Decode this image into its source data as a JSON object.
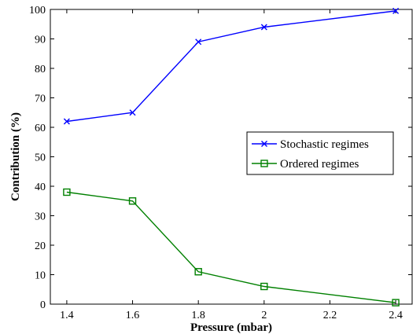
{
  "chart_data": {
    "type": "line",
    "xlabel": "Pressure (mbar)",
    "ylabel": "Contribution (%)",
    "x": [
      1.4,
      1.6,
      1.8,
      2.0,
      2.4
    ],
    "xlim": [
      1.35,
      2.45
    ],
    "ylim": [
      0,
      100
    ],
    "xticks": [
      "1.4",
      "1.6",
      "1.8",
      "2",
      "2.2",
      "2.4"
    ],
    "yticks": [
      "0",
      "10",
      "20",
      "30",
      "40",
      "50",
      "60",
      "70",
      "80",
      "90",
      "100"
    ],
    "grid": false,
    "legend_position": "right",
    "series": [
      {
        "name": "Stochastic regimes",
        "values": [
          62,
          65,
          89,
          94,
          99.5
        ],
        "color": "#0000ff",
        "marker": "x"
      },
      {
        "name": "Ordered regimes",
        "values": [
          38,
          35,
          11,
          6,
          0.5
        ],
        "color": "#008000",
        "marker": "square"
      }
    ]
  }
}
